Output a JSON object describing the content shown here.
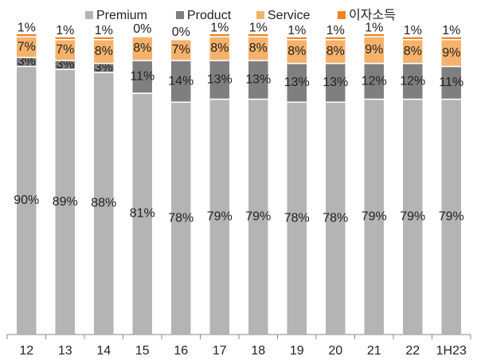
{
  "chart_data": {
    "type": "stacked_bar",
    "categories": [
      "12",
      "13",
      "14",
      "15",
      "16",
      "17",
      "18",
      "19",
      "20",
      "21",
      "22",
      "1H23"
    ],
    "series": [
      {
        "name": "Premium",
        "color": "#b4b4b4",
        "values": [
          90,
          89,
          88,
          81,
          78,
          79,
          79,
          78,
          78,
          79,
          79,
          79
        ],
        "value_labels": [
          "90%",
          "89%",
          "88%",
          "81%",
          "78%",
          "79%",
          "79%",
          "78%",
          "78%",
          "79%",
          "79%",
          "79%"
        ]
      },
      {
        "name": "Product",
        "color": "#7f7f7f",
        "values": [
          3,
          3,
          3,
          11,
          14,
          13,
          13,
          13,
          13,
          12,
          12,
          11
        ],
        "value_labels": [
          "3%",
          "3%",
          "3%",
          "11%",
          "14%",
          "13%",
          "13%",
          "13%",
          "13%",
          "12%",
          "12%",
          "11%"
        ]
      },
      {
        "name": "Service",
        "color": "#f5b26b",
        "values": [
          7,
          7,
          8,
          8,
          7,
          8,
          8,
          8,
          8,
          9,
          8,
          9
        ],
        "value_labels": [
          "7%",
          "7%",
          "8%",
          "8%",
          "7%",
          "8%",
          "8%",
          "8%",
          "8%",
          "9%",
          "8%",
          "9%"
        ]
      },
      {
        "name": "이자소득",
        "color": "#f0831e",
        "values": [
          1,
          1,
          1,
          0,
          0,
          1,
          1,
          1,
          1,
          1,
          1,
          1
        ],
        "value_labels": [
          "1%",
          "1%",
          "1%",
          "0%",
          "0%",
          "1%",
          "1%",
          "1%",
          "1%",
          "1%",
          "1%",
          "1%"
        ]
      }
    ],
    "ylim": [
      0,
      100
    ],
    "legend": "top"
  }
}
